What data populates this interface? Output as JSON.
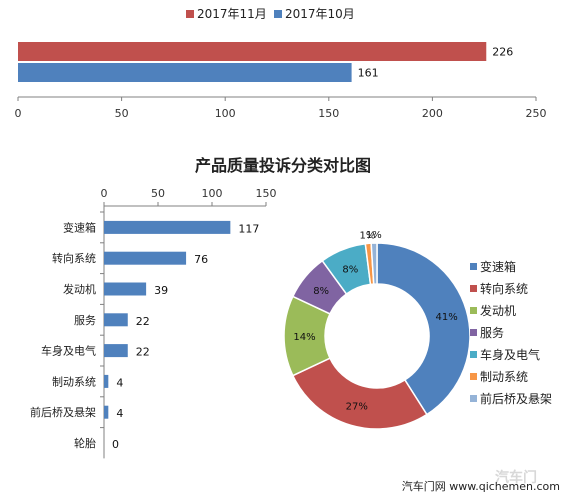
{
  "chart_data": [
    {
      "type": "bar",
      "orientation": "horizontal",
      "categories": [
        ""
      ],
      "series": [
        {
          "name": "2017年11月",
          "values": [
            226
          ],
          "color": "#c0504d"
        },
        {
          "name": "2017年10月",
          "values": [
            161
          ],
          "color": "#4f81bd"
        }
      ],
      "xlim": [
        0,
        250
      ],
      "xticks": [
        "0",
        "50",
        "100",
        "150",
        "200",
        "250"
      ],
      "legend": "top-center",
      "grid": false
    },
    {
      "type": "bar",
      "orientation": "horizontal",
      "title": "产品质量投诉分类对比图",
      "categories": [
        "变速箱",
        "转向系统",
        "发动机",
        "服务",
        "车身及电气",
        "制动系统",
        "前后桥及悬架",
        "轮胎"
      ],
      "values": [
        117,
        76,
        39,
        22,
        22,
        4,
        4,
        0
      ],
      "color": "#4f81bd",
      "xlim": [
        0,
        150
      ],
      "xticks": [
        "0",
        "50",
        "100",
        "150"
      ],
      "xaxis_position": "top",
      "grid": false
    },
    {
      "type": "pie",
      "donut": true,
      "labels": [
        "变速箱",
        "转向系统",
        "发动机",
        "服务",
        "车身及电气",
        "制动系统",
        "前后桥及悬架"
      ],
      "values": [
        41,
        27,
        14,
        8,
        8,
        1,
        1
      ],
      "display_labels": [
        "41%",
        "27%",
        "14%",
        "8%",
        "8%",
        "1%",
        "1%"
      ],
      "colors": [
        "#4f81bd",
        "#c0504d",
        "#9bbb59",
        "#8064a2",
        "#4bacc6",
        "#f79646",
        "#95b3d7"
      ],
      "legend": "right"
    }
  ],
  "watermark": {
    "text": "汽车门网 www.qichemen.com",
    "logo_text": "汽车门"
  }
}
